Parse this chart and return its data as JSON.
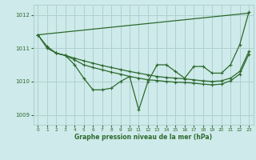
{
  "background_color": "#ceeaea",
  "grid_color": "#afd0d0",
  "line_color": "#2d6a2d",
  "title": "Graphe pression niveau de la mer (hPa)",
  "xlim": [
    -0.5,
    23.5
  ],
  "ylim": [
    1008.7,
    1012.3
  ],
  "yticks": [
    1009,
    1010,
    1011,
    1012
  ],
  "xticks": [
    0,
    1,
    2,
    3,
    4,
    5,
    6,
    7,
    8,
    9,
    10,
    11,
    12,
    13,
    14,
    15,
    16,
    17,
    18,
    19,
    20,
    21,
    22,
    23
  ],
  "line_straight": {
    "x": [
      0,
      23
    ],
    "y": [
      1011.4,
      1012.05
    ]
  },
  "line_upper": {
    "x": [
      0,
      1,
      2,
      3,
      4,
      5,
      6,
      7,
      8,
      9,
      10,
      11,
      12,
      13,
      14,
      15,
      16,
      17,
      18,
      19,
      20,
      21,
      22,
      23
    ],
    "y": [
      1011.4,
      1011.05,
      1010.85,
      1010.78,
      1010.7,
      1010.62,
      1010.55,
      1010.48,
      1010.42,
      1010.36,
      1010.3,
      1010.25,
      1010.2,
      1010.15,
      1010.12,
      1010.1,
      1010.08,
      1010.05,
      1010.02,
      1010.0,
      1010.02,
      1010.1,
      1010.3,
      1010.9
    ]
  },
  "line_lower": {
    "x": [
      0,
      1,
      2,
      3,
      4,
      5,
      6,
      7,
      8,
      9,
      10,
      11,
      12,
      13,
      14,
      15,
      16,
      17,
      18,
      19,
      20,
      21,
      22,
      23
    ],
    "y": [
      1011.4,
      1011.0,
      1010.85,
      1010.78,
      1010.65,
      1010.5,
      1010.42,
      1010.35,
      1010.28,
      1010.22,
      1010.15,
      1010.1,
      1010.05,
      1010.03,
      1010.0,
      1009.98,
      1009.97,
      1009.95,
      1009.92,
      1009.9,
      1009.92,
      1010.02,
      1010.22,
      1010.82
    ]
  },
  "line_zigzag": {
    "x": [
      2,
      3,
      4,
      5,
      6,
      7,
      8,
      9,
      10,
      11,
      12,
      13,
      14,
      15,
      16,
      17,
      18,
      19,
      20,
      21,
      22,
      23
    ],
    "y": [
      1010.85,
      1010.78,
      1010.5,
      1010.1,
      1009.75,
      1009.75,
      1009.8,
      1010.0,
      1010.15,
      1009.15,
      1010.0,
      1010.5,
      1010.5,
      1010.3,
      1010.1,
      1010.45,
      1010.45,
      1010.25,
      1010.25,
      1010.5,
      1011.1,
      1012.08
    ]
  }
}
